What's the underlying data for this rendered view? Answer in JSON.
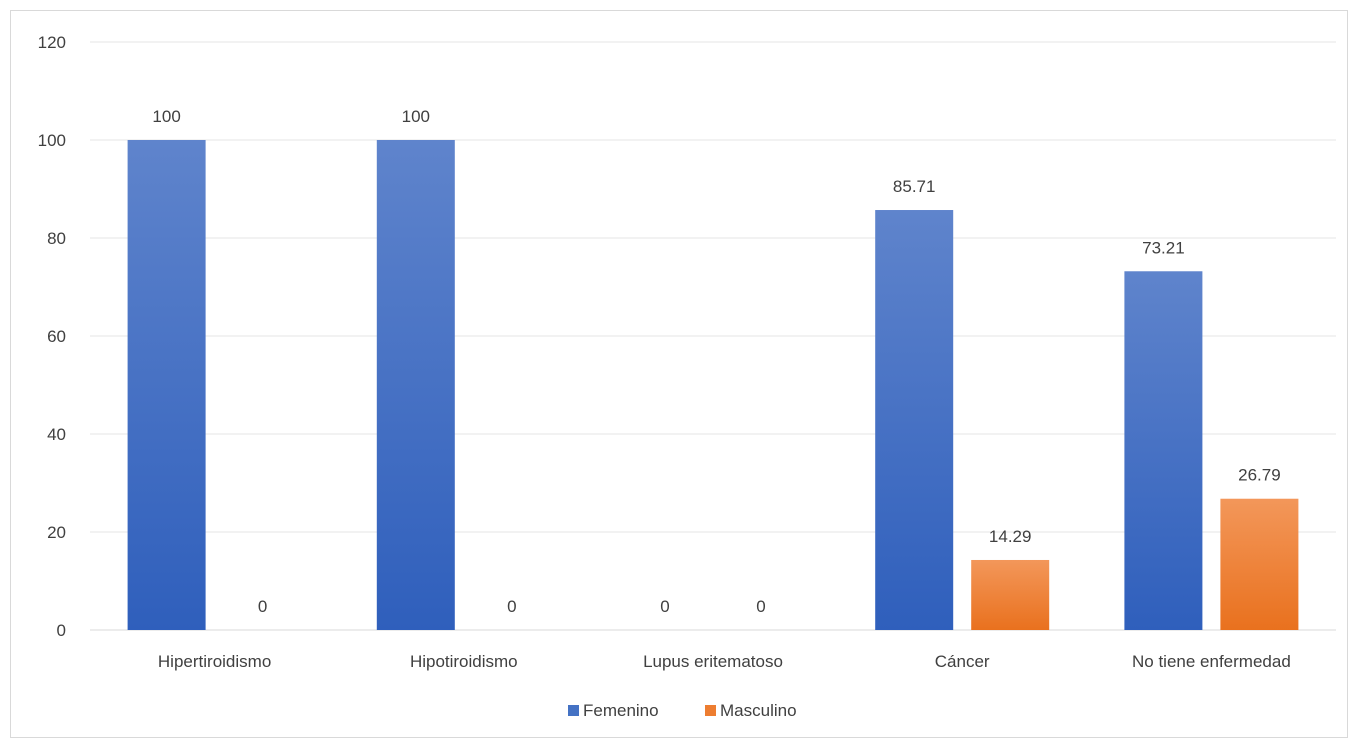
{
  "chart_data": {
    "type": "bar",
    "title": "",
    "xlabel": "",
    "ylabel": "",
    "categories": [
      "Hipertiroidismo",
      "Hipotiroidismo",
      "Lupus eritematoso",
      "Cáncer",
      "No tiene enfermedad"
    ],
    "series": [
      {
        "name": "Femenino",
        "values": [
          100,
          100,
          0,
          85.71,
          73.21
        ],
        "color": "#4472c4"
      },
      {
        "name": "Masculino",
        "values": [
          0,
          0,
          0,
          14.29,
          26.79
        ],
        "color": "#ed7d31"
      }
    ],
    "data_labels": [
      [
        "100",
        "100",
        "0",
        "85.71",
        "73.21"
      ],
      [
        "0",
        "0",
        "0",
        "14.29",
        "26.79"
      ]
    ],
    "ylim": [
      0,
      120
    ],
    "y_ticks": [
      "0",
      "20",
      "40",
      "60",
      "80",
      "100",
      "120"
    ],
    "grid": true,
    "legend_position": "bottom"
  }
}
